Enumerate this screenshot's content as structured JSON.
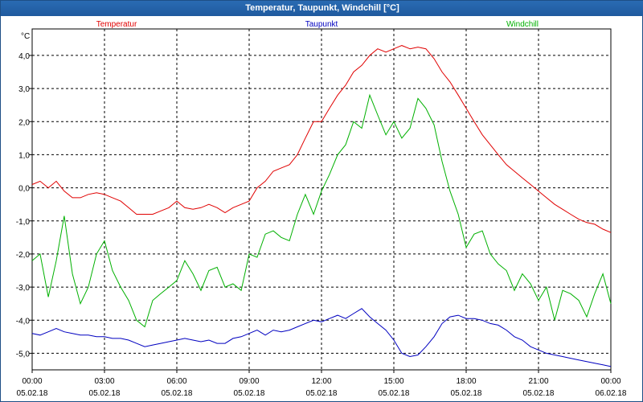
{
  "window": {
    "title": "Temperatur, Taupunkt, Windchill [°C]"
  },
  "chart_data": {
    "type": "line",
    "title": "Temperatur, Taupunkt, Windchill [°C]",
    "ylabel": "°C",
    "ylim": [
      -5.5,
      4.8
    ],
    "yticks": [
      4.0,
      3.0,
      2.0,
      1.0,
      0.0,
      -1.0,
      -2.0,
      -3.0,
      -4.0,
      -5.0
    ],
    "ytick_labels": [
      "4,0",
      "3,0",
      "2,0",
      "1,0",
      "0,0",
      "-1,0",
      "-2,0",
      "-3,0",
      "-4,0",
      "-5,0"
    ],
    "xlim": [
      0,
      24
    ],
    "xticks": [
      {
        "x": 0,
        "time": "00:00",
        "date": "05.02.18"
      },
      {
        "x": 3,
        "time": "03:00",
        "date": "05.02.18"
      },
      {
        "x": 6,
        "time": "06:00",
        "date": "05.02.18"
      },
      {
        "x": 9,
        "time": "09:00",
        "date": "05.02.18"
      },
      {
        "x": 12,
        "time": "12:00",
        "date": "05.02.18"
      },
      {
        "x": 15,
        "time": "15:00",
        "date": "05.02.18"
      },
      {
        "x": 18,
        "time": "18:00",
        "date": "05.02.18"
      },
      {
        "x": 21,
        "time": "21:00",
        "date": "05.02.18"
      },
      {
        "x": 24,
        "time": "00:00",
        "date": "06.02.18"
      }
    ],
    "grid": true,
    "legend_placement": "top",
    "series": [
      {
        "name": "Temperatur",
        "color": "#e00000",
        "x": [
          0,
          0.33,
          0.67,
          1,
          1.33,
          1.67,
          2,
          2.33,
          2.67,
          3,
          3.33,
          3.67,
          4,
          4.33,
          4.67,
          5,
          5.33,
          5.67,
          6,
          6.33,
          6.67,
          7,
          7.33,
          7.67,
          8,
          8.33,
          8.67,
          9,
          9.33,
          9.67,
          10,
          10.33,
          10.67,
          11,
          11.33,
          11.67,
          12,
          12.33,
          12.67,
          13,
          13.33,
          13.67,
          14,
          14.33,
          14.67,
          15,
          15.33,
          15.67,
          16,
          16.33,
          16.67,
          17,
          17.33,
          17.67,
          18,
          18.33,
          18.67,
          19,
          19.33,
          19.67,
          20,
          20.33,
          20.67,
          21,
          21.33,
          21.67,
          22,
          22.33,
          22.67,
          23,
          23.33,
          23.67,
          24
        ],
        "values": [
          0.1,
          0.2,
          0.0,
          0.2,
          -0.1,
          -0.3,
          -0.3,
          -0.2,
          -0.15,
          -0.2,
          -0.3,
          -0.4,
          -0.6,
          -0.8,
          -0.8,
          -0.8,
          -0.7,
          -0.6,
          -0.4,
          -0.6,
          -0.65,
          -0.6,
          -0.5,
          -0.6,
          -0.75,
          -0.6,
          -0.5,
          -0.4,
          0.0,
          0.2,
          0.5,
          0.6,
          0.7,
          1.0,
          1.5,
          2.0,
          2.0,
          2.4,
          2.8,
          3.1,
          3.5,
          3.7,
          4.0,
          4.2,
          4.1,
          4.2,
          4.3,
          4.2,
          4.25,
          4.2,
          3.9,
          3.5,
          3.2,
          2.8,
          2.4,
          2.0,
          1.6,
          1.3,
          1.0,
          0.7,
          0.5,
          0.3,
          0.1,
          -0.1,
          -0.3,
          -0.5,
          -0.65,
          -0.8,
          -0.95,
          -1.05,
          -1.1,
          -1.25,
          -1.35
        ]
      },
      {
        "name": "Taupunkt",
        "color": "#0000c0",
        "x": [
          0,
          0.33,
          0.67,
          1,
          1.33,
          1.67,
          2,
          2.33,
          2.67,
          3,
          3.33,
          3.67,
          4,
          4.33,
          4.67,
          5,
          5.33,
          5.67,
          6,
          6.33,
          6.67,
          7,
          7.33,
          7.67,
          8,
          8.33,
          8.67,
          9,
          9.33,
          9.67,
          10,
          10.33,
          10.67,
          11,
          11.33,
          11.67,
          12,
          12.33,
          12.67,
          13,
          13.33,
          13.67,
          14,
          14.33,
          14.67,
          15,
          15.33,
          15.67,
          16,
          16.33,
          16.67,
          17,
          17.33,
          17.67,
          18,
          18.33,
          18.67,
          19,
          19.33,
          19.67,
          20,
          20.33,
          20.67,
          21,
          21.33,
          21.67,
          22,
          22.33,
          22.67,
          23,
          23.33,
          23.67,
          24
        ],
        "values": [
          -4.4,
          -4.45,
          -4.35,
          -4.25,
          -4.35,
          -4.4,
          -4.45,
          -4.45,
          -4.5,
          -4.5,
          -4.55,
          -4.55,
          -4.6,
          -4.7,
          -4.8,
          -4.75,
          -4.7,
          -4.65,
          -4.6,
          -4.55,
          -4.6,
          -4.65,
          -4.6,
          -4.7,
          -4.7,
          -4.55,
          -4.5,
          -4.4,
          -4.3,
          -4.45,
          -4.3,
          -4.35,
          -4.3,
          -4.2,
          -4.1,
          -4.0,
          -4.05,
          -3.95,
          -3.85,
          -3.95,
          -3.8,
          -3.65,
          -3.9,
          -4.1,
          -4.3,
          -4.6,
          -5.0,
          -5.1,
          -5.05,
          -4.8,
          -4.5,
          -4.1,
          -3.9,
          -3.85,
          -3.95,
          -3.95,
          -4.0,
          -4.1,
          -4.15,
          -4.3,
          -4.5,
          -4.6,
          -4.8,
          -4.9,
          -5.0,
          -5.05,
          -5.1,
          -5.15,
          -5.2,
          -5.25,
          -5.3,
          -5.35,
          -5.4
        ]
      },
      {
        "name": "Windchill",
        "color": "#00b000",
        "x": [
          0,
          0.33,
          0.67,
          1,
          1.33,
          1.67,
          2,
          2.33,
          2.67,
          3,
          3.33,
          3.67,
          4,
          4.33,
          4.67,
          5,
          5.33,
          5.67,
          6,
          6.33,
          6.67,
          7,
          7.33,
          7.67,
          8,
          8.33,
          8.67,
          9,
          9.33,
          9.67,
          10,
          10.33,
          10.67,
          11,
          11.33,
          11.67,
          12,
          12.33,
          12.67,
          13,
          13.33,
          13.67,
          14,
          14.33,
          14.67,
          15,
          15.33,
          15.67,
          16,
          16.33,
          16.67,
          17,
          17.33,
          17.67,
          18,
          18.33,
          18.67,
          19,
          19.33,
          19.67,
          20,
          20.33,
          20.67,
          21,
          21.33,
          21.67,
          22,
          22.33,
          22.67,
          23,
          23.33,
          23.67,
          24
        ],
        "values": [
          -2.2,
          -2.0,
          -3.3,
          -2.2,
          -0.85,
          -2.6,
          -3.5,
          -3.0,
          -2.0,
          -1.6,
          -2.5,
          -3.0,
          -3.4,
          -4.0,
          -4.2,
          -3.4,
          -3.2,
          -3.0,
          -2.8,
          -2.2,
          -2.6,
          -3.1,
          -2.5,
          -2.4,
          -3.0,
          -2.9,
          -3.1,
          -2.0,
          -2.1,
          -1.4,
          -1.3,
          -1.5,
          -1.6,
          -0.8,
          -0.2,
          -0.8,
          -0.1,
          0.4,
          1.0,
          1.3,
          2.0,
          1.8,
          2.8,
          2.2,
          1.6,
          2.0,
          1.5,
          1.8,
          2.7,
          2.4,
          1.9,
          0.8,
          -0.1,
          -0.8,
          -1.8,
          -1.4,
          -1.3,
          -2.0,
          -2.3,
          -2.5,
          -3.1,
          -2.6,
          -2.9,
          -3.4,
          -3.0,
          -4.0,
          -3.1,
          -3.2,
          -3.4,
          -3.9,
          -3.2,
          -2.6,
          -3.5
        ]
      }
    ]
  }
}
